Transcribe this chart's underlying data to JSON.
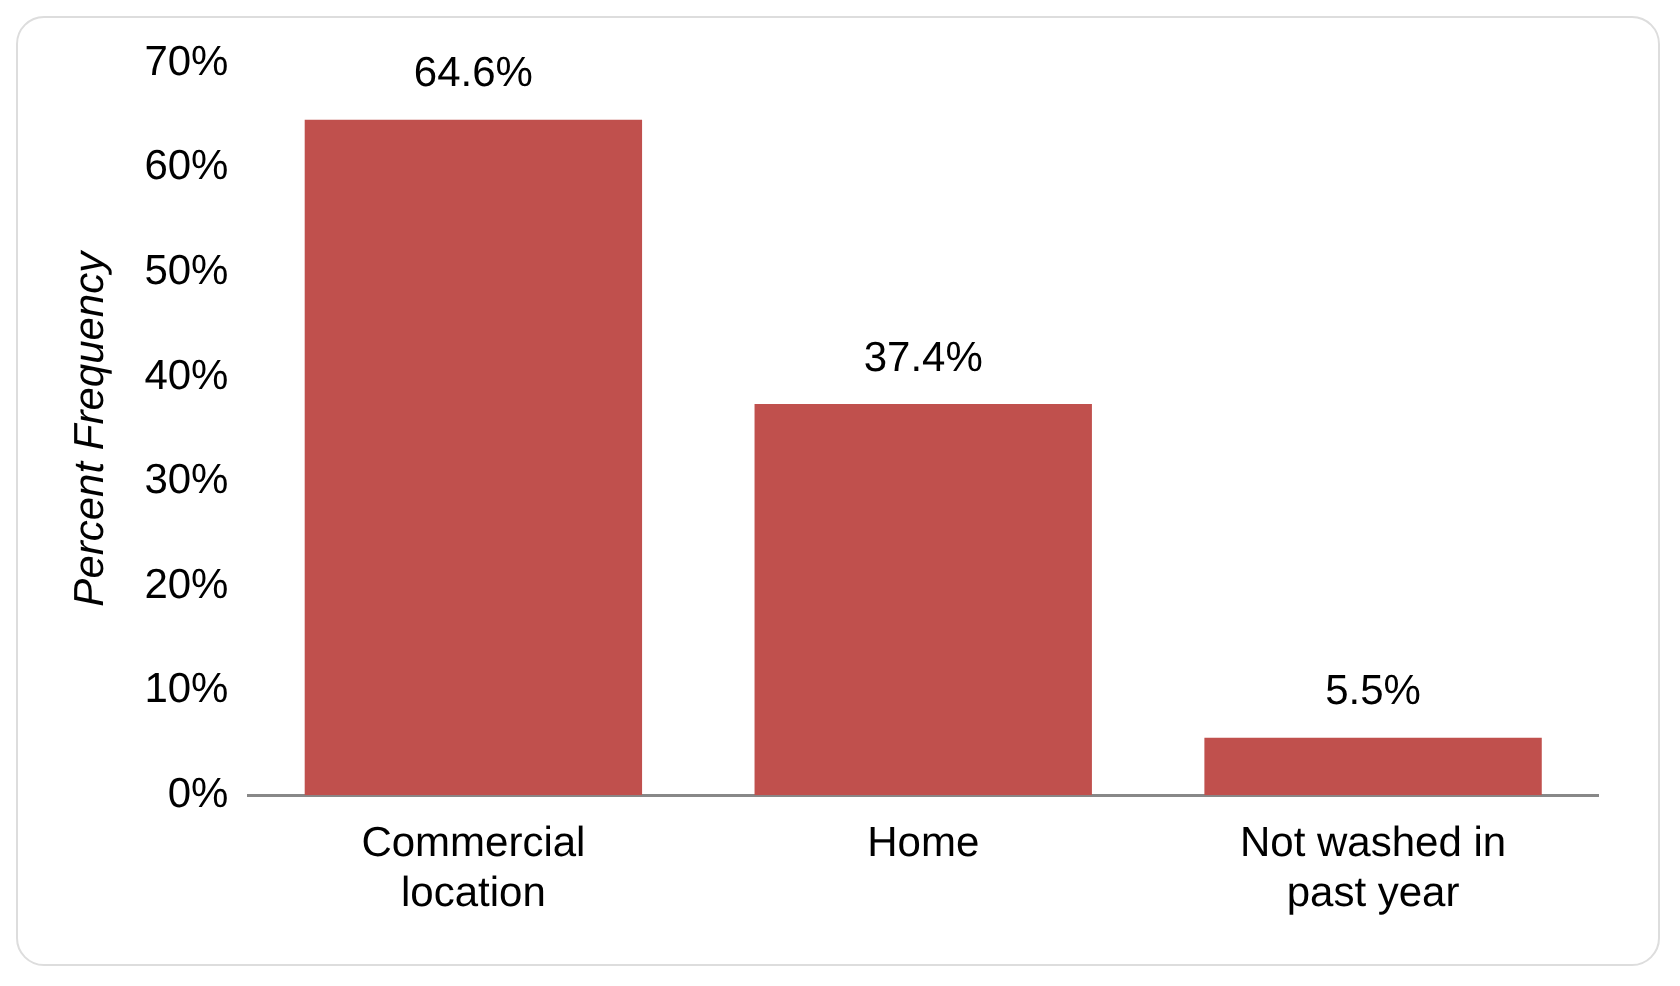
{
  "chart_data": {
    "type": "bar",
    "ylabel": "Percent Frequency",
    "categories": [
      "Commercial location",
      "Home",
      "Not washed in past year"
    ],
    "values": [
      64.6,
      37.4,
      5.5
    ],
    "value_labels": [
      "64.6%",
      "37.4%",
      "5.5%"
    ],
    "color": "#c0504d",
    "ylim": [
      0,
      70
    ],
    "yticks": [
      {
        "value": 0,
        "label": "0%"
      },
      {
        "value": 10,
        "label": "10%"
      },
      {
        "value": 20,
        "label": "20%"
      },
      {
        "value": 30,
        "label": "30%"
      },
      {
        "value": 40,
        "label": "40%"
      },
      {
        "value": 50,
        "label": "50%"
      },
      {
        "value": 60,
        "label": "60%"
      },
      {
        "value": 70,
        "label": "70%"
      }
    ],
    "grid": false,
    "legend": false
  }
}
